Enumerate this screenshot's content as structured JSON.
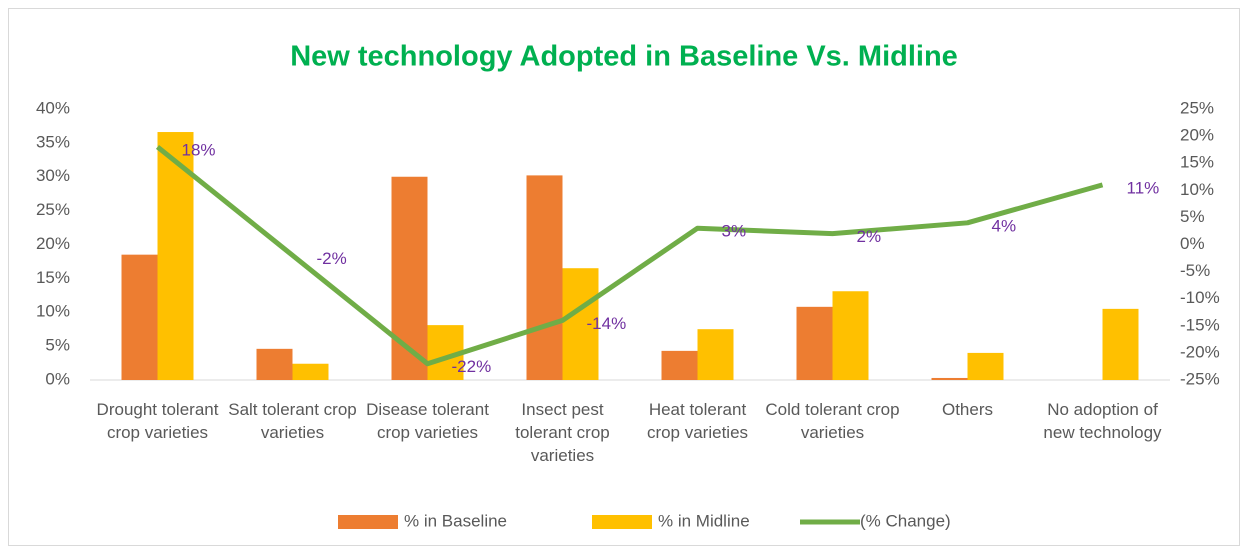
{
  "chart_data": {
    "type": "bar",
    "title": "New  technology Adopted in Baseline Vs. Midline",
    "categories": [
      "Drought tolerant crop varieties",
      "Salt tolerant crop varieties",
      "Disease tolerant crop varieties",
      "Insect pest tolerant crop varieties",
      "Heat tolerant crop varieties",
      "Cold tolerant crop varieties",
      "Others",
      "No adoption of new technology"
    ],
    "series": [
      {
        "name": "% in  Baseline",
        "color": "#ED7D31",
        "type": "bar",
        "values": [
          18.5,
          4.6,
          30,
          30.2,
          4.3,
          10.8,
          0.3,
          0
        ]
      },
      {
        "name": "% in Midline",
        "color": "#FFC000",
        "type": "bar",
        "values": [
          36.6,
          2.4,
          8.1,
          16.5,
          7.5,
          13.1,
          4.0,
          10.5
        ]
      },
      {
        "name": "(% Change)",
        "color": "#70AD47",
        "type": "line",
        "axis": "y2",
        "values": [
          18,
          -2,
          -22,
          -14,
          3,
          2,
          4,
          11
        ],
        "value_labels": [
          "18%",
          "-2%",
          "-22%",
          "-14%",
          "3%",
          "2%",
          "4%",
          "11%"
        ],
        "label_color": "#7030A0"
      }
    ],
    "ylim": [
      0,
      40
    ],
    "yticks": [
      {
        "value": 0,
        "label": "0%"
      },
      {
        "value": 5,
        "label": "5%"
      },
      {
        "value": 10,
        "label": "10%"
      },
      {
        "value": 15,
        "label": "15%"
      },
      {
        "value": 20,
        "label": "20%"
      },
      {
        "value": 25,
        "label": "25%"
      },
      {
        "value": 30,
        "label": "30%"
      },
      {
        "value": 35,
        "label": "35%"
      },
      {
        "value": 40,
        "label": "40%"
      }
    ],
    "y2lim": [
      -25,
      25
    ],
    "y2ticks": [
      {
        "value": -25,
        "label": "-25%"
      },
      {
        "value": -20,
        "label": "-20%"
      },
      {
        "value": -15,
        "label": "-15%"
      },
      {
        "value": -10,
        "label": "-10%"
      },
      {
        "value": -5,
        "label": "-5%"
      },
      {
        "value": 0,
        "label": "0%"
      },
      {
        "value": 5,
        "label": "5%"
      },
      {
        "value": 10,
        "label": "10%"
      },
      {
        "value": 15,
        "label": "15%"
      },
      {
        "value": 20,
        "label": "20%"
      },
      {
        "value": 25,
        "label": "25%"
      }
    ],
    "grid": false,
    "legend": "bottom"
  }
}
